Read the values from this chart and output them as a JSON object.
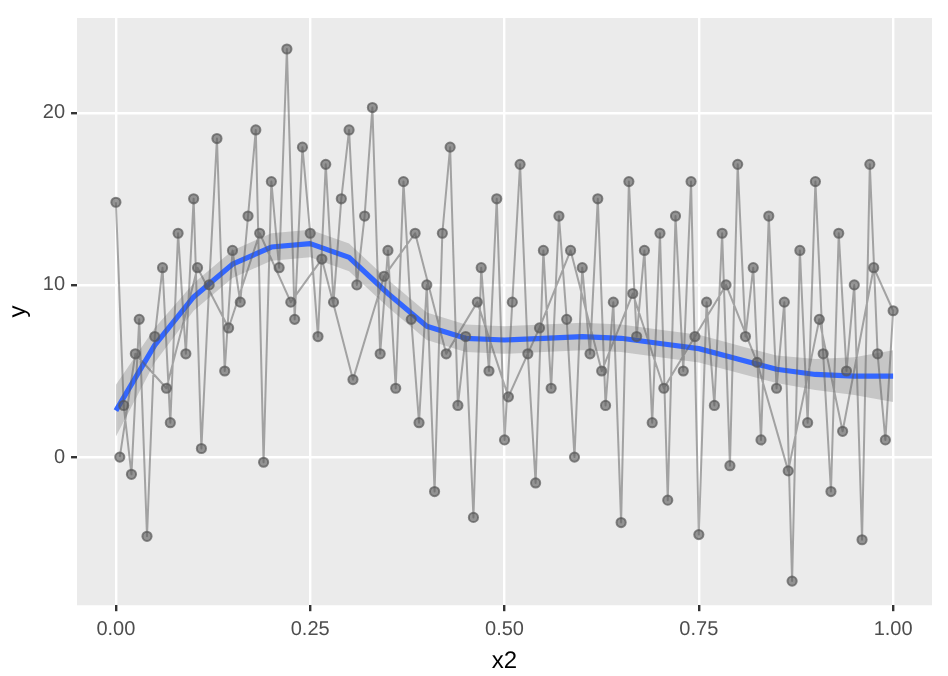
{
  "chart_data": {
    "type": "line",
    "xlabel": "x2",
    "ylabel": "y",
    "xlim": [
      -0.05,
      1.05
    ],
    "ylim": [
      -8.6,
      25.5
    ],
    "xticks": [
      {
        "value": 0,
        "label": "0.00"
      },
      {
        "value": 0.25,
        "label": "0.25"
      },
      {
        "value": 0.5,
        "label": "0.50"
      },
      {
        "value": 0.75,
        "label": "0.75"
      },
      {
        "value": 1,
        "label": "1.00"
      }
    ],
    "yticks": [
      0,
      10,
      20
    ],
    "grid": true,
    "legend": false,
    "series": [
      {
        "marker": "circle",
        "color": "#595959",
        "x": [
          0,
          0.01,
          0.02,
          0.03,
          0.04,
          0.05,
          0.06,
          0.07,
          0.08,
          0.09,
          0.1,
          0.11,
          0.12,
          0.13,
          0.14,
          0.15,
          0.16,
          0.17,
          0.18,
          0.19,
          0.2,
          0.21,
          0.22,
          0.23,
          0.24,
          0.25,
          0.26,
          0.27,
          0.28,
          0.29,
          0.3,
          0.31,
          0.32,
          0.33,
          0.34,
          0.35,
          0.36,
          0.37,
          0.38,
          0.39,
          0.4,
          0.41,
          0.42,
          0.43,
          0.44,
          0.45,
          0.46,
          0.47,
          0.48,
          0.49,
          0.5,
          0.51,
          0.52,
          0.53,
          0.54,
          0.55,
          0.56,
          0.57,
          0.58,
          0.59,
          0.6,
          0.61,
          0.62,
          0.63,
          0.64,
          0.65,
          0.66,
          0.67,
          0.68,
          0.69,
          0.7,
          0.71,
          0.72,
          0.73,
          0.74,
          0.75,
          0.76,
          0.77,
          0.78,
          0.79,
          0.8,
          0.81,
          0.82,
          0.83,
          0.84,
          0.85,
          0.86,
          0.87,
          0.88,
          0.89,
          0.9,
          0.91,
          0.92,
          0.93,
          0.94,
          0.95,
          0.96,
          0.97,
          0.98,
          0.99,
          1,
          0.975,
          0.935,
          0.905,
          0.865,
          0.825,
          0.785,
          0.745,
          0.705,
          0.665,
          0.625,
          0.585,
          0.545,
          0.505,
          0.465,
          0.425,
          0.385,
          0.345,
          0.305,
          0.265,
          0.225,
          0.185,
          0.145,
          0.105,
          0.065,
          0.025,
          0.005
        ],
        "values": [
          14.8,
          3,
          -1,
          8,
          -4.6,
          7,
          11,
          2,
          13,
          6,
          15,
          0.5,
          10,
          18.5,
          5,
          12,
          9,
          14,
          19,
          -0.3,
          16,
          11,
          23.7,
          8,
          18,
          13,
          7,
          17,
          9,
          15,
          19,
          10,
          14,
          20.3,
          6,
          12,
          4,
          16,
          8,
          2,
          10,
          -2,
          13,
          18,
          3,
          7,
          -3.5,
          11,
          5,
          15,
          1,
          9,
          17,
          6,
          -1.5,
          12,
          4,
          14,
          8,
          0,
          11,
          6,
          15,
          3,
          9,
          -3.8,
          16,
          7,
          12,
          2,
          13,
          -2.5,
          14,
          5,
          16,
          -4.5,
          9,
          3,
          13,
          -0.5,
          17,
          7,
          11,
          1,
          14,
          4,
          9,
          -7.2,
          12,
          2,
          16,
          6,
          -2,
          13,
          5,
          10,
          -4.8,
          17,
          6,
          1,
          8.5,
          11,
          1.5,
          8,
          -0.8,
          5.5,
          10,
          7,
          4,
          9.5,
          5,
          12,
          7.5,
          3.5,
          9,
          6,
          13,
          10.5,
          4.5,
          11.5,
          9,
          13,
          7.5,
          11,
          4,
          6,
          0
        ]
      },
      {
        "type": "line",
        "marker": "none",
        "color": "#3366ff",
        "x": [
          0,
          0.05,
          0.1,
          0.15,
          0.2,
          0.25,
          0.3,
          0.35,
          0.4,
          0.45,
          0.5,
          0.55,
          0.6,
          0.65,
          0.7,
          0.75,
          0.8,
          0.85,
          0.9,
          0.95,
          1
        ],
        "values": [
          2.7,
          6.5,
          9.3,
          11.2,
          12.2,
          12.4,
          11.6,
          9.5,
          7.6,
          6.9,
          6.8,
          6.9,
          7,
          6.9,
          6.6,
          6.3,
          5.7,
          5.1,
          4.8,
          4.7,
          4.7
        ],
        "lower": [
          1.2,
          5.5,
          8.5,
          10.4,
          11.4,
          11.6,
          10.8,
          8.7,
          6.8,
          6.1,
          6,
          6.1,
          6.2,
          6.1,
          5.8,
          5.5,
          4.9,
          4.3,
          3.9,
          3.6,
          3.2
        ],
        "upper": [
          4.2,
          7.5,
          10.1,
          12,
          13,
          13.2,
          12.4,
          10.3,
          8.4,
          7.7,
          7.6,
          7.7,
          7.8,
          7.7,
          7.4,
          7.1,
          6.5,
          5.9,
          5.7,
          5.8,
          6.2
        ]
      }
    ]
  }
}
